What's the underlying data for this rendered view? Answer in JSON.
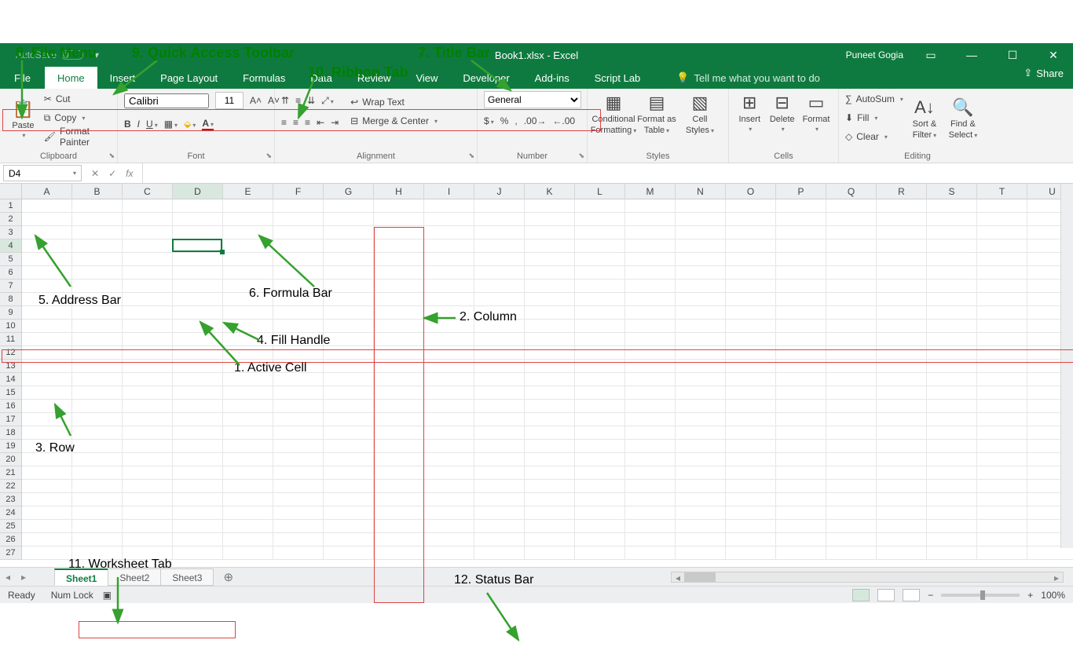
{
  "annotations": {
    "a8": "8. File Menu",
    "a9": "9. Quick Access Toolbar",
    "a10": "10. Ribbon Tab",
    "a7": "7. Title Bar",
    "a5": "5. Address Bar",
    "a6": "6. Formula Bar",
    "a4": "4. Fill Handle",
    "a1": "1. Active Cell",
    "a2": "2. Column",
    "a3": "3. Row",
    "a11": "11. Worksheet Tab",
    "a12": "12. Status Bar"
  },
  "titlebar": {
    "autosave": "AutoSave",
    "title": "Book1.xlsx  -  Excel",
    "user": "Puneet Gogia"
  },
  "ribbonTabs": {
    "file": "File",
    "home": "Home",
    "insert": "Insert",
    "pageLayout": "Page Layout",
    "formulas": "Formulas",
    "data": "Data",
    "review": "Review",
    "view": "View",
    "developer": "Developer",
    "addins": "Add-ins",
    "scriptlab": "Script Lab",
    "tellme": "Tell me what you want to do",
    "share": "Share"
  },
  "ribbon": {
    "clipboard": {
      "label": "Clipboard",
      "paste": "Paste",
      "cut": "Cut",
      "copy": "Copy",
      "formatPainter": "Format Painter"
    },
    "font": {
      "label": "Font",
      "name": "Calibri",
      "size": "11"
    },
    "alignment": {
      "label": "Alignment",
      "wrap": "Wrap Text",
      "merge": "Merge & Center"
    },
    "number": {
      "label": "Number",
      "format": "General"
    },
    "styles": {
      "label": "Styles",
      "cond": "Conditional",
      "cond2": "Formatting",
      "fat": "Format as",
      "fat2": "Table",
      "cell": "Cell",
      "cell2": "Styles"
    },
    "cells": {
      "label": "Cells",
      "insert": "Insert",
      "delete": "Delete",
      "format": "Format"
    },
    "editing": {
      "label": "Editing",
      "autosum": "AutoSum",
      "fill": "Fill",
      "clear": "Clear",
      "sort": "Sort &",
      "sort2": "Filter",
      "find": "Find &",
      "find2": "Select"
    }
  },
  "formulaBar": {
    "namebox": "D4",
    "fx": "fx"
  },
  "grid": {
    "columns": [
      "A",
      "B",
      "C",
      "D",
      "E",
      "F",
      "G",
      "H",
      "I",
      "J",
      "K",
      "L",
      "M",
      "N",
      "O",
      "P",
      "Q",
      "R",
      "S",
      "T",
      "U"
    ],
    "rowCount": 27,
    "activeCell": "D4",
    "activeCol": 3,
    "activeRow": 3,
    "highlightCol": "H",
    "highlightRow": 9
  },
  "sheets": {
    "s1": "Sheet1",
    "s2": "Sheet2",
    "s3": "Sheet3"
  },
  "status": {
    "ready": "Ready",
    "numlock": "Num Lock",
    "zoom": "100%"
  },
  "colors": {
    "excelGreen": "#0f7a3f",
    "selectionGreen": "#107c41",
    "annotationGreen": "#008000",
    "highlightRed": "#d44444"
  }
}
